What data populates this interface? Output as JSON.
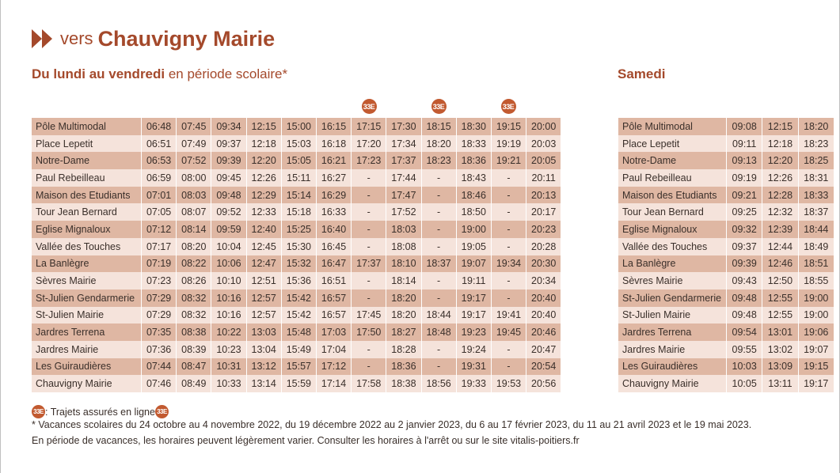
{
  "title": {
    "prefix": "vers",
    "destination": "Chauvigny Mairie"
  },
  "weekday": {
    "title_bold": "Du lundi au vendredi",
    "title_rest": " en période scolaire*",
    "badge_label": "33E",
    "badge_columns": [
      7,
      9,
      11
    ],
    "rows": [
      {
        "stop": "Pôle Multimodal",
        "times": [
          "06:48",
          "07:45",
          "09:34",
          "12:15",
          "15:00",
          "16:15",
          "17:15",
          "17:30",
          "18:15",
          "18:30",
          "19:15",
          "20:00"
        ]
      },
      {
        "stop": "Place Lepetit",
        "times": [
          "06:51",
          "07:49",
          "09:37",
          "12:18",
          "15:03",
          "16:18",
          "17:20",
          "17:34",
          "18:20",
          "18:33",
          "19:19",
          "20:03"
        ]
      },
      {
        "stop": "Notre-Dame",
        "times": [
          "06:53",
          "07:52",
          "09:39",
          "12:20",
          "15:05",
          "16:21",
          "17:23",
          "17:37",
          "18:23",
          "18:36",
          "19:21",
          "20:05"
        ]
      },
      {
        "stop": "Paul Rebeilleau",
        "times": [
          "06:59",
          "08:00",
          "09:45",
          "12:26",
          "15:11",
          "16:27",
          "-",
          "17:44",
          "-",
          "18:43",
          "-",
          "20:11"
        ]
      },
      {
        "stop": "Maison des Etudiants",
        "times": [
          "07:01",
          "08:03",
          "09:48",
          "12:29",
          "15:14",
          "16:29",
          "-",
          "17:47",
          "-",
          "18:46",
          "-",
          "20:13"
        ]
      },
      {
        "stop": "Tour Jean Bernard",
        "times": [
          "07:05",
          "08:07",
          "09:52",
          "12:33",
          "15:18",
          "16:33",
          "-",
          "17:52",
          "-",
          "18:50",
          "-",
          "20:17"
        ]
      },
      {
        "stop": "Eglise Mignaloux",
        "times": [
          "07:12",
          "08:14",
          "09:59",
          "12:40",
          "15:25",
          "16:40",
          "-",
          "18:03",
          "-",
          "19:00",
          "-",
          "20:23"
        ]
      },
      {
        "stop": "Vallée des Touches",
        "times": [
          "07:17",
          "08:20",
          "10:04",
          "12:45",
          "15:30",
          "16:45",
          "-",
          "18:08",
          "-",
          "19:05",
          "-",
          "20:28"
        ]
      },
      {
        "stop": "La Banlègre",
        "times": [
          "07:19",
          "08:22",
          "10:06",
          "12:47",
          "15:32",
          "16:47",
          "17:37",
          "18:10",
          "18:37",
          "19:07",
          "19:34",
          "20:30"
        ]
      },
      {
        "stop": "Sèvres Mairie",
        "times": [
          "07:23",
          "08:26",
          "10:10",
          "12:51",
          "15:36",
          "16:51",
          "-",
          "18:14",
          "-",
          "19:11",
          "-",
          "20:34"
        ]
      },
      {
        "stop": "St-Julien Gendarmerie",
        "times": [
          "07:29",
          "08:32",
          "10:16",
          "12:57",
          "15:42",
          "16:57",
          "-",
          "18:20",
          "-",
          "19:17",
          "-",
          "20:40"
        ]
      },
      {
        "stop": "St-Julien Mairie",
        "times": [
          "07:29",
          "08:32",
          "10:16",
          "12:57",
          "15:42",
          "16:57",
          "17:45",
          "18:20",
          "18:44",
          "19:17",
          "19:41",
          "20:40"
        ]
      },
      {
        "stop": "Jardres Terrena",
        "times": [
          "07:35",
          "08:38",
          "10:22",
          "13:03",
          "15:48",
          "17:03",
          "17:50",
          "18:27",
          "18:48",
          "19:23",
          "19:45",
          "20:46"
        ]
      },
      {
        "stop": "Jardres Mairie",
        "times": [
          "07:36",
          "08:39",
          "10:23",
          "13:04",
          "15:49",
          "17:04",
          "-",
          "18:28",
          "-",
          "19:24",
          "-",
          "20:47"
        ]
      },
      {
        "stop": "Les Guiraudières",
        "times": [
          "07:44",
          "08:47",
          "10:31",
          "13:12",
          "15:57",
          "17:12",
          "-",
          "18:36",
          "-",
          "19:31",
          "-",
          "20:54"
        ]
      },
      {
        "stop": "Chauvigny Mairie",
        "times": [
          "07:46",
          "08:49",
          "10:33",
          "13:14",
          "15:59",
          "17:14",
          "17:58",
          "18:38",
          "18:56",
          "19:33",
          "19:53",
          "20:56"
        ]
      }
    ]
  },
  "saturday": {
    "title": "Samedi",
    "rows": [
      {
        "stop": "Pôle Multimodal",
        "times": [
          "09:08",
          "12:15",
          "18:20"
        ]
      },
      {
        "stop": "Place Lepetit",
        "times": [
          "09:11",
          "12:18",
          "18:23"
        ]
      },
      {
        "stop": "Notre-Dame",
        "times": [
          "09:13",
          "12:20",
          "18:25"
        ]
      },
      {
        "stop": "Paul Rebeilleau",
        "times": [
          "09:19",
          "12:26",
          "18:31"
        ]
      },
      {
        "stop": "Maison des Etudiants",
        "times": [
          "09:21",
          "12:28",
          "18:33"
        ]
      },
      {
        "stop": "Tour Jean Bernard",
        "times": [
          "09:25",
          "12:32",
          "18:37"
        ]
      },
      {
        "stop": "Eglise Mignaloux",
        "times": [
          "09:32",
          "12:39",
          "18:44"
        ]
      },
      {
        "stop": "Vallée des Touches",
        "times": [
          "09:37",
          "12:44",
          "18:49"
        ]
      },
      {
        "stop": "La Banlègre",
        "times": [
          "09:39",
          "12:46",
          "18:51"
        ]
      },
      {
        "stop": "Sèvres Mairie",
        "times": [
          "09:43",
          "12:50",
          "18:55"
        ]
      },
      {
        "stop": "St-Julien Gendarmerie",
        "times": [
          "09:48",
          "12:55",
          "19:00"
        ]
      },
      {
        "stop": "St-Julien Mairie",
        "times": [
          "09:48",
          "12:55",
          "19:00"
        ]
      },
      {
        "stop": "Jardres Terrena",
        "times": [
          "09:54",
          "13:01",
          "19:06"
        ]
      },
      {
        "stop": "Jardres Mairie",
        "times": [
          "09:55",
          "13:02",
          "19:07"
        ]
      },
      {
        "stop": "Les Guiraudières",
        "times": [
          "10:03",
          "13:09",
          "19:15"
        ]
      },
      {
        "stop": "Chauvigny Mairie",
        "times": [
          "10:05",
          "13:11",
          "19:17"
        ]
      }
    ]
  },
  "notes": {
    "badge_label": "33E",
    "online_text": " : Trajets assurés en ligne ",
    "holidays": "* Vacances scolaires du 24 octobre au 4 novembre 2022, du 19 décembre 2022 au 2 janvier 2023, du 6 au 17 février 2023, du 11 au 21 avril 2023 et le 19 mai 2023.",
    "vacation": "En période de vacances, les horaires peuvent légèrement varier. Consulter les horaires à l'arrêt ou sur le site vitalis-poitiers.fr"
  },
  "colors": {
    "accent": "#a4492b",
    "badge": "#c25a30",
    "row_dark": "#dfb7a3",
    "row_light": "#f5e3db"
  }
}
